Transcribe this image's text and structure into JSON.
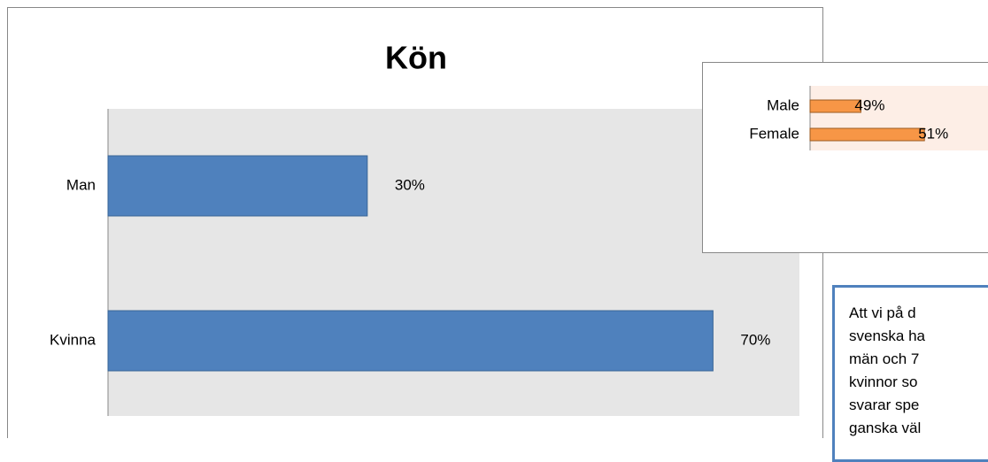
{
  "chart_data": [
    {
      "type": "bar",
      "orientation": "horizontal",
      "title": "Kön",
      "categories": [
        "Man",
        "Kvinna"
      ],
      "values": [
        30,
        70
      ],
      "value_labels": [
        "30%",
        "70%"
      ],
      "color": "#4f81bd",
      "xlim": [
        0,
        80
      ]
    },
    {
      "type": "bar",
      "orientation": "horizontal",
      "categories": [
        "Male",
        "Female"
      ],
      "values": [
        49,
        51
      ],
      "value_labels": [
        "49%",
        "51%"
      ],
      "color": "#f79646",
      "xlim": [
        47.4,
        53
      ]
    }
  ],
  "note": {
    "lines": [
      "Att vi på d",
      "svenska ha",
      "män och 7",
      "kvinnor so",
      "svarar spe",
      "ganska väl"
    ]
  }
}
